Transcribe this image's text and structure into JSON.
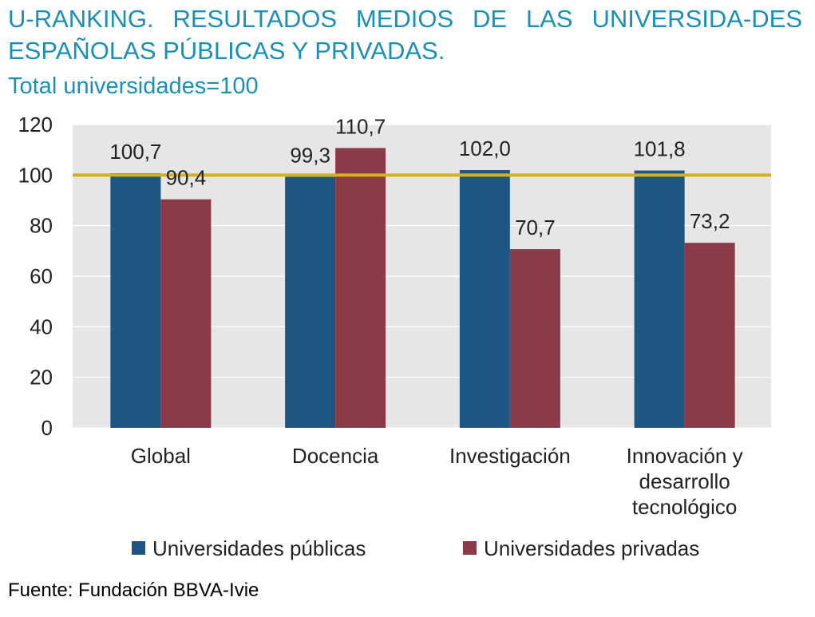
{
  "title": "U-RANKING. RESULTADOS MEDIOS DE LAS UNIVERSIDA-DES ESPAÑOLAS PÚBLICAS Y PRIVADAS.",
  "subtitle": "Total universidades=100",
  "source": "Fuente: Fundación BBVA-Ivie",
  "chart_data": {
    "type": "bar",
    "categories": [
      [
        "Global"
      ],
      [
        "Docencia"
      ],
      [
        "Investigación"
      ],
      [
        "Innovación y",
        "desarrollo",
        "tecnológico"
      ]
    ],
    "series": [
      {
        "name": "Universidades públicas",
        "values": [
          100.7,
          99.3,
          102.0,
          101.8
        ],
        "labels": [
          "100,7",
          "99,3",
          "102,0",
          "101,8"
        ],
        "color": "#1f5582"
      },
      {
        "name": "Universidades privadas",
        "values": [
          90.4,
          110.7,
          70.7,
          73.2
        ],
        "labels": [
          "90,4",
          "110,7",
          "70,7",
          "73,2"
        ],
        "color": "#8b3a47"
      }
    ],
    "ylim": [
      0,
      120
    ],
    "yticks": [
      0,
      20,
      40,
      60,
      80,
      100,
      120
    ],
    "reference_line": {
      "value": 100,
      "color": "#d4b21a"
    },
    "grid": true,
    "plot_background": "#e6e6e6",
    "legend_position": "bottom"
  }
}
